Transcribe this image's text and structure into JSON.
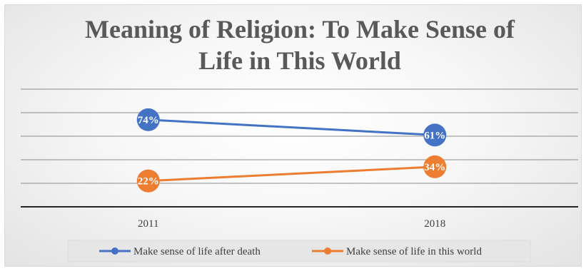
{
  "chart_data": {
    "type": "line",
    "title_lines": [
      "Meaning of Religion: To Make Sense of",
      "Life in This World"
    ],
    "categories": [
      "2011",
      "2018"
    ],
    "series": [
      {
        "name": "Make sense of life after death",
        "values": [
          74,
          61
        ],
        "labels": [
          "74%",
          "61%"
        ],
        "color": "#4472c4"
      },
      {
        "name": "Make sense of life in this world",
        "values": [
          22,
          34
        ],
        "labels": [
          "22%",
          "34%"
        ],
        "color": "#ed7d31"
      }
    ],
    "xlabel": "",
    "ylabel": "",
    "ylim": [
      0,
      100
    ],
    "y_gridlines": [
      20,
      40,
      60,
      80,
      100
    ],
    "grid": true,
    "y_axis_labels_shown": false,
    "legend": "bottom",
    "colors": {
      "axis": "#262626",
      "grid": "#8c8c8c",
      "title": "#595959"
    }
  }
}
